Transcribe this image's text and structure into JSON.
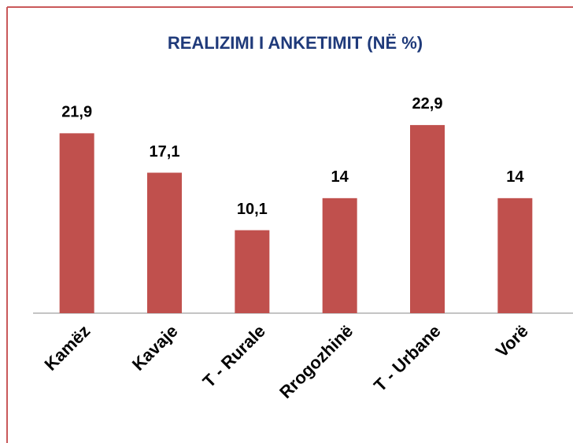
{
  "chart_data": {
    "type": "bar",
    "title": "REALIZIMI I ANKETIMIT (NË %)",
    "categories": [
      "Kamëz",
      "Kavaje",
      "T - Rurale",
      "Rrogozhinë",
      "T - Urbane",
      "Vorë"
    ],
    "values": [
      21.9,
      17.1,
      10.1,
      14,
      22.9,
      14
    ],
    "value_labels": [
      "21,9",
      "17,1",
      "10,1",
      "14",
      "22,9",
      "14"
    ],
    "color": "#c0504d",
    "ylim": [
      0,
      25
    ]
  }
}
